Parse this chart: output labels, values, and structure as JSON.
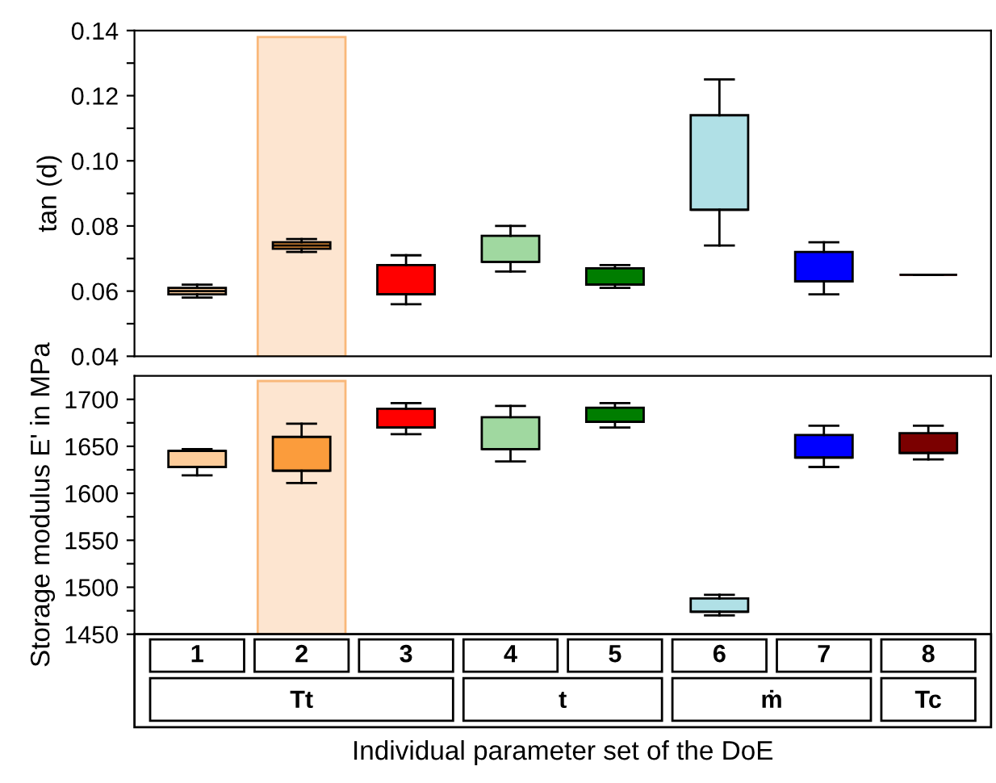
{
  "chart_data": [
    {
      "type": "box",
      "ylabel": "tan (d)",
      "categories": [
        "1",
        "2",
        "3",
        "4",
        "5",
        "6",
        "7",
        "8"
      ],
      "colors": [
        "#fdcc9a",
        "#fb9c3c",
        "#ff0000",
        "#a0d8a0",
        "#007d00",
        "#b0e0e6",
        "#0000ff",
        "#7b0000"
      ],
      "boxes": [
        {
          "low": 0.058,
          "q1": 0.059,
          "median": 0.06,
          "q3": 0.061,
          "high": 0.062
        },
        {
          "low": 0.072,
          "q1": 0.073,
          "median": 0.074,
          "q3": 0.075,
          "high": 0.076
        },
        {
          "low": 0.056,
          "q1": 0.059,
          "median": 0.059,
          "q3": 0.068,
          "high": 0.071
        },
        {
          "low": 0.066,
          "q1": 0.069,
          "median": 0.069,
          "q3": 0.077,
          "high": 0.08
        },
        {
          "low": 0.061,
          "q1": 0.062,
          "median": 0.062,
          "q3": 0.067,
          "high": 0.068
        },
        {
          "low": 0.074,
          "q1": 0.085,
          "median": 0.085,
          "q3": 0.114,
          "high": 0.125
        },
        {
          "low": 0.059,
          "q1": 0.063,
          "median": 0.063,
          "q3": 0.072,
          "high": 0.075
        },
        {
          "low": 0.065,
          "q1": 0.065,
          "median": 0.065,
          "q3": 0.065,
          "high": 0.065
        }
      ],
      "ylim": [
        0.04,
        0.14
      ],
      "yticks": [
        0.04,
        {
          "value": 0.05,
          "label": null
        },
        0.06,
        {
          "value": 0.07,
          "label": null
        },
        0.08,
        {
          "value": 0.09,
          "label": null
        },
        {
          "value": 0.1,
          "label": "0.10"
        },
        {
          "value": 0.11,
          "label": null
        },
        0.12,
        {
          "value": 0.13,
          "label": null
        },
        0.14
      ],
      "tick_labels": "y",
      "bands": [
        {
          "axis": "x",
          "from": "2",
          "to": "2",
          "color": "#fde5d0"
        }
      ]
    },
    {
      "type": "box",
      "ylabel": "Storage modulus E' in MPa",
      "xlabel": "Individual parameter set of the DoE",
      "categories": [
        "1",
        "2",
        "3",
        "4",
        "5",
        "6",
        "7",
        "8"
      ],
      "colors": [
        "#fdcc9a",
        "#fb9c3c",
        "#ff0000",
        "#a0d8a0",
        "#007d00",
        "#b0e0e6",
        "#0000ff",
        "#7b0000"
      ],
      "boxes": [
        {
          "low": 1619,
          "q1": 1628,
          "median": 1645,
          "q3": 1645,
          "high": 1647
        },
        {
          "low": 1611,
          "q1": 1624,
          "median": 1624,
          "q3": 1660,
          "high": 1674
        },
        {
          "low": 1663,
          "q1": 1670,
          "median": 1670,
          "q3": 1690,
          "high": 1696
        },
        {
          "low": 1634,
          "q1": 1647,
          "median": 1647,
          "q3": 1681,
          "high": 1693
        },
        {
          "low": 1670,
          "q1": 1676,
          "median": 1676,
          "q3": 1691,
          "high": 1696
        },
        {
          "low": 1470,
          "q1": 1474,
          "median": 1474,
          "q3": 1488,
          "high": 1492
        },
        {
          "low": 1628,
          "q1": 1638,
          "median": 1638,
          "q3": 1662,
          "high": 1672
        },
        {
          "low": 1636,
          "q1": 1643,
          "median": 1643,
          "q3": 1664,
          "high": 1672
        }
      ],
      "ylim": [
        1450,
        1725
      ],
      "yticks": [
        1450,
        {
          "value": 1475,
          "label": null
        },
        1500,
        {
          "value": 1525,
          "label": null
        },
        1550,
        {
          "value": 1575,
          "label": null
        },
        1600,
        {
          "value": 1625,
          "label": null
        },
        1650,
        {
          "value": 1675,
          "label": null
        },
        1700
      ],
      "bands": [
        {
          "axis": "x",
          "from": "2",
          "to": "2",
          "color": "#fde5d0"
        }
      ],
      "annotations": [
        "Tt",
        "t",
        "ṁ",
        "Tc"
      ]
    }
  ]
}
